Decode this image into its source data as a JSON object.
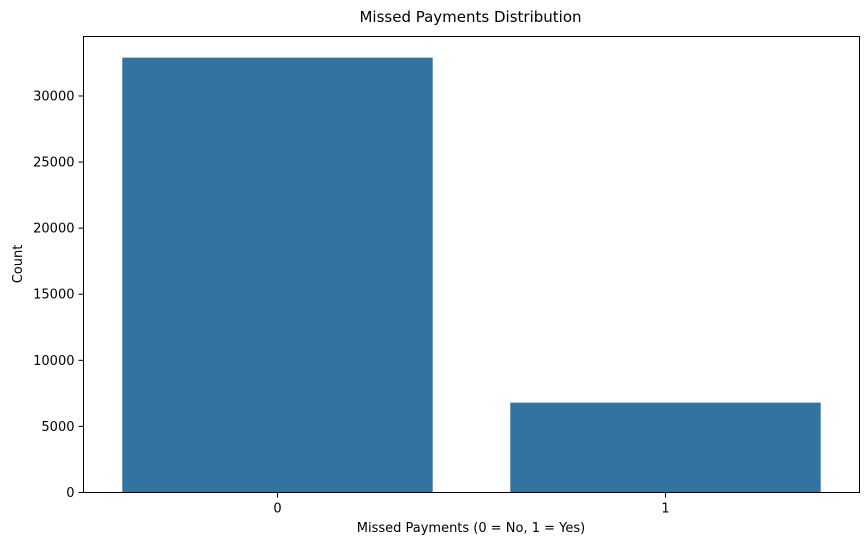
{
  "chart_data": {
    "type": "bar",
    "title": "Missed Payments Distribution",
    "xlabel": "Missed Payments (0 = No, 1 = Yes)",
    "ylabel": "Count",
    "categories": [
      "0",
      "1"
    ],
    "values": [
      32900,
      6800
    ],
    "ylim": [
      0,
      34500
    ],
    "yticks": [
      0,
      5000,
      10000,
      15000,
      20000,
      25000,
      30000
    ],
    "bar_color": "#3274a1",
    "grid": false,
    "legend": "none"
  }
}
